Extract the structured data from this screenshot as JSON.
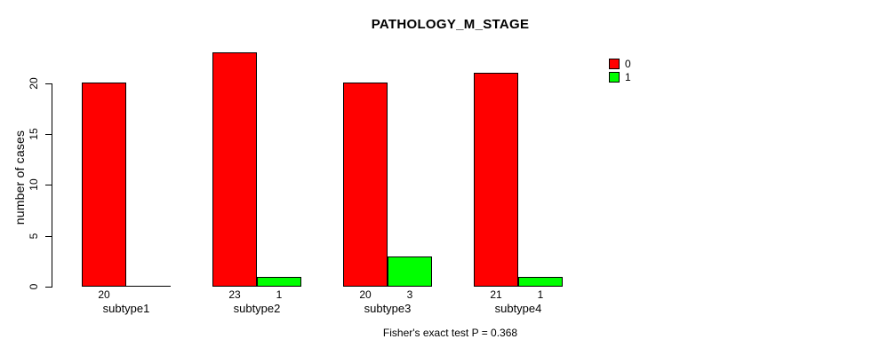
{
  "chart_data": {
    "type": "bar",
    "title": "PATHOLOGY_M_STAGE",
    "ylabel": "number of cases",
    "xlabel": "",
    "categories": [
      "subtype1",
      "subtype2",
      "subtype3",
      "subtype4"
    ],
    "series": [
      {
        "name": "0",
        "color": "#FF0000",
        "values": [
          20,
          23,
          20,
          21
        ]
      },
      {
        "name": "1",
        "color": "#00FF00",
        "values": [
          0,
          1,
          3,
          1
        ]
      }
    ],
    "bar_value_labels": [
      [
        "20",
        ""
      ],
      [
        "23",
        "1"
      ],
      [
        "20",
        "3"
      ],
      [
        "21",
        "1"
      ]
    ],
    "yticks": [
      0,
      5,
      10,
      15,
      20
    ],
    "ylim": [
      0,
      23
    ],
    "grid": false,
    "legend_position": "top-right",
    "caption": "Fisher's exact test P = 0.368"
  },
  "colors": {
    "background": "#FFFFFF",
    "axis": "#000000",
    "text": "#000000",
    "bar_border": "#000000",
    "series_0": "#FF0000",
    "series_1": "#00FF00"
  }
}
